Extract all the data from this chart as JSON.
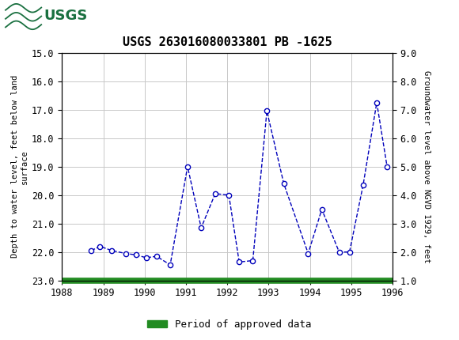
{
  "title": "USGS 263016080033801 PB -1625",
  "header_color": "#1a7040",
  "x_data": [
    1988.71,
    1988.92,
    1989.21,
    1989.54,
    1989.79,
    1990.04,
    1990.29,
    1990.62,
    1991.04,
    1991.37,
    1991.71,
    1992.04,
    1992.29,
    1992.62,
    1992.96,
    1993.37,
    1993.96,
    1994.29,
    1994.71,
    1994.96,
    1995.29,
    1995.62,
    1995.87
  ],
  "y_data": [
    21.95,
    21.8,
    21.95,
    22.05,
    22.1,
    22.2,
    22.15,
    22.45,
    19.0,
    21.15,
    19.95,
    20.0,
    22.35,
    22.3,
    17.05,
    19.6,
    22.05,
    20.5,
    22.0,
    22.0,
    19.65,
    16.75,
    19.0
  ],
  "xlim": [
    1988,
    1996
  ],
  "ylim_left_bottom": 23.0,
  "ylim_left_top": 15.0,
  "ylim_right_bottom": 1.0,
  "ylim_right_top": 9.0,
  "xticks": [
    1988,
    1989,
    1990,
    1991,
    1992,
    1993,
    1994,
    1995,
    1996
  ],
  "yticks_left": [
    15.0,
    16.0,
    17.0,
    18.0,
    19.0,
    20.0,
    21.0,
    22.0,
    23.0
  ],
  "yticks_right": [
    9.0,
    8.0,
    7.0,
    6.0,
    5.0,
    4.0,
    3.0,
    2.0,
    1.0
  ],
  "ylabel_left": "Depth to water level, feet below land\nsurface",
  "ylabel_right": "Groundwater level above NGVD 1929, feet",
  "line_color": "#0000bb",
  "marker_face": "white",
  "green_bar_color": "#228B22",
  "legend_label": "Period of approved data",
  "background_color": "#ffffff",
  "grid_color": "#c8c8c8",
  "font_family": "DejaVu Sans Mono"
}
